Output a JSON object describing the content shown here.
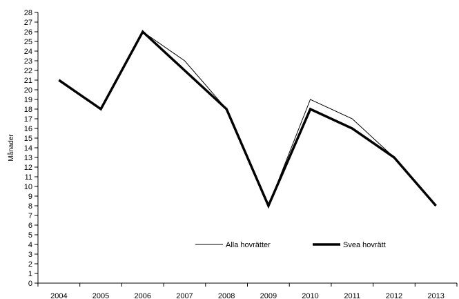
{
  "chart_data": {
    "type": "line",
    "x": [
      "2004",
      "2005",
      "2006",
      "2007",
      "2008",
      "2009",
      "2010",
      "2011",
      "2012",
      "2013"
    ],
    "series": [
      {
        "name": "Alla hovrätter",
        "values": [
          21,
          18,
          26,
          23,
          18,
          8,
          19,
          17,
          13,
          8
        ],
        "color": "#000000",
        "width": 1
      },
      {
        "name": "Svea hovrätt",
        "values": [
          21,
          18,
          26,
          22,
          18,
          8,
          18,
          16,
          13,
          8
        ],
        "color": "#000000",
        "width": 3.5
      }
    ],
    "ylabel": "Månader",
    "ylim": [
      0,
      28
    ],
    "yticks": [
      0,
      1,
      2,
      3,
      4,
      5,
      6,
      7,
      8,
      9,
      10,
      11,
      12,
      13,
      14,
      15,
      16,
      17,
      18,
      19,
      20,
      21,
      22,
      23,
      24,
      25,
      26,
      27,
      28
    ],
    "grid": false,
    "legend": "inside-bottom-center"
  }
}
